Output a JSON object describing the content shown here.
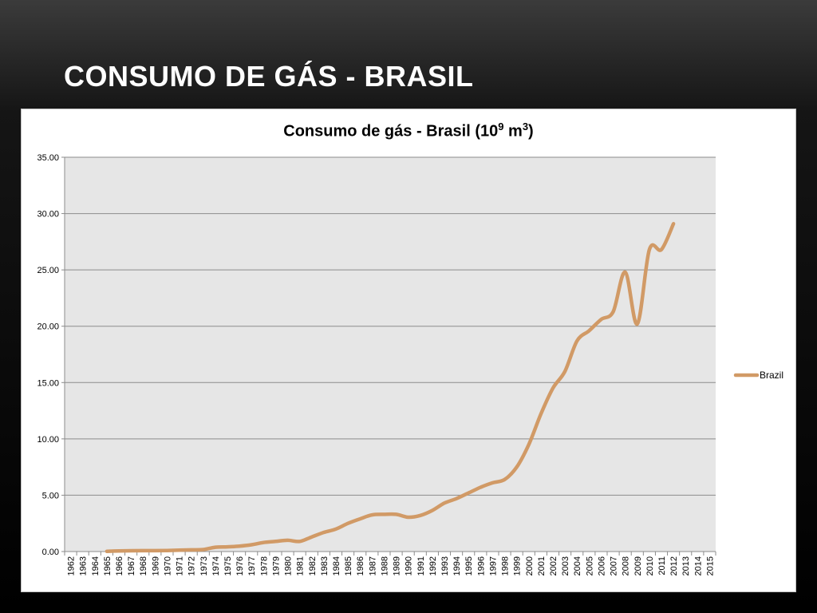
{
  "slide": {
    "title": "CONSUMO DE GÁS - BRASIL"
  },
  "chart_data": {
    "type": "line",
    "title_parts": {
      "prefix": "Consumo de gás - Brasil (10",
      "exp1": "9",
      "middle": " m",
      "exp2": "3",
      "suffix": ")"
    },
    "xlabel": "",
    "ylabel": "",
    "ylim": [
      0,
      35
    ],
    "yticks": [
      "0.00",
      "5.00",
      "10.00",
      "15.00",
      "20.00",
      "25.00",
      "30.00",
      "35.00"
    ],
    "categories": [
      "1962",
      "1963",
      "1964",
      "1965",
      "1966",
      "1967",
      "1968",
      "1969",
      "1970",
      "1971",
      "1972",
      "1973",
      "1974",
      "1975",
      "1976",
      "1977",
      "1978",
      "1979",
      "1980",
      "1981",
      "1982",
      "1983",
      "1984",
      "1985",
      "1986",
      "1987",
      "1988",
      "1989",
      "1990",
      "1991",
      "1992",
      "1993",
      "1994",
      "1995",
      "1996",
      "1997",
      "1998",
      "1999",
      "2000",
      "2001",
      "2002",
      "2003",
      "2004",
      "2005",
      "2006",
      "2007",
      "2008",
      "2009",
      "2010",
      "2011",
      "2012",
      "2013",
      "2014",
      "2015"
    ],
    "grid": true,
    "legend_position": "right",
    "series": [
      {
        "name": "Brazil",
        "color": "#d19a66",
        "values": [
          null,
          null,
          null,
          0.02,
          0.05,
          0.07,
          0.08,
          0.08,
          0.09,
          0.12,
          0.15,
          0.18,
          0.38,
          0.42,
          0.48,
          0.6,
          0.8,
          0.9,
          1.0,
          0.9,
          1.3,
          1.7,
          2.0,
          2.5,
          2.9,
          3.25,
          3.3,
          3.3,
          3.05,
          3.2,
          3.65,
          4.3,
          4.7,
          5.2,
          5.7,
          6.1,
          6.4,
          7.5,
          9.5,
          12.2,
          14.5,
          16.0,
          18.7,
          19.6,
          20.6,
          21.3,
          24.8,
          20.2,
          26.8,
          26.8,
          29.1,
          null,
          null,
          null
        ]
      }
    ]
  }
}
